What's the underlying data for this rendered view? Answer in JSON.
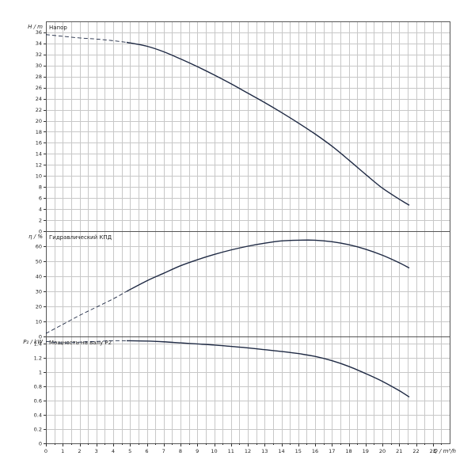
{
  "chart_data": [
    {
      "type": "line",
      "title": "Напор",
      "ylabel": "H / m",
      "xlabel": "",
      "xlim": [
        0,
        24
      ],
      "ylim": [
        0,
        38
      ],
      "y_ticks": [
        0,
        2,
        4,
        6,
        8,
        10,
        12,
        14,
        16,
        18,
        20,
        22,
        24,
        26,
        28,
        30,
        32,
        34,
        36
      ],
      "grid": true,
      "series": [
        {
          "style": "dashed",
          "x": [
            0,
            1,
            2,
            3,
            4,
            4.8
          ],
          "y": [
            35.6,
            35.3,
            35.0,
            34.8,
            34.5,
            34.2
          ]
        },
        {
          "style": "solid",
          "x": [
            4.8,
            6,
            7,
            8,
            9,
            10,
            11,
            12,
            13,
            14,
            15,
            16,
            17,
            18,
            19,
            20,
            21,
            21.6
          ],
          "y": [
            34.2,
            33.5,
            32.5,
            31.2,
            29.8,
            28.3,
            26.7,
            25.0,
            23.3,
            21.5,
            19.6,
            17.6,
            15.4,
            12.9,
            10.3,
            7.8,
            5.8,
            4.7
          ]
        }
      ]
    },
    {
      "type": "line",
      "title": "Гидравлический КПД",
      "ylabel": "η / %",
      "xlabel": "",
      "xlim": [
        0,
        24
      ],
      "ylim": [
        0,
        70
      ],
      "y_ticks": [
        0,
        10,
        20,
        30,
        40,
        50,
        60
      ],
      "grid": true,
      "series": [
        {
          "style": "dashed",
          "x": [
            0,
            1,
            2,
            3,
            4,
            4.8
          ],
          "y": [
            2,
            8,
            14,
            19.5,
            25,
            30
          ]
        },
        {
          "style": "solid",
          "x": [
            4.8,
            6,
            7,
            8,
            9,
            10,
            11,
            12,
            13,
            14,
            15,
            16,
            17,
            18,
            19,
            20,
            21,
            21.6
          ],
          "y": [
            30,
            37,
            42,
            47,
            51,
            54.5,
            57.5,
            60,
            62,
            63.5,
            64,
            64,
            63,
            61,
            58,
            54,
            49,
            45.5
          ]
        }
      ]
    },
    {
      "type": "line",
      "title": "Мощность на валу P2",
      "ylabel": "P₂ / kW",
      "xlabel": "Q / m³/h",
      "xlim": [
        0,
        24
      ],
      "ylim": [
        0,
        1.5
      ],
      "y_ticks": [
        0,
        0.2,
        0.4,
        0.6,
        0.8,
        1,
        1.2,
        1.4
      ],
      "x_ticks": [
        0,
        1,
        2,
        3,
        4,
        5,
        6,
        7,
        8,
        9,
        10,
        11,
        12,
        13,
        14,
        15,
        16,
        17,
        18,
        19,
        20,
        21,
        22,
        23
      ],
      "grid": true,
      "series": [
        {
          "style": "dashed",
          "x": [
            0,
            1,
            2,
            3,
            4,
            4.8
          ],
          "y": [
            1.43,
            1.41,
            1.42,
            1.43,
            1.44,
            1.44
          ]
        },
        {
          "style": "solid",
          "x": [
            4.8,
            6,
            7,
            8,
            9,
            10,
            11,
            12,
            13,
            14,
            15,
            16,
            17,
            18,
            19,
            20,
            21,
            21.6
          ],
          "y": [
            1.44,
            1.435,
            1.425,
            1.41,
            1.395,
            1.38,
            1.36,
            1.34,
            1.315,
            1.29,
            1.26,
            1.22,
            1.16,
            1.08,
            0.98,
            0.87,
            0.74,
            0.65
          ]
        }
      ]
    }
  ]
}
